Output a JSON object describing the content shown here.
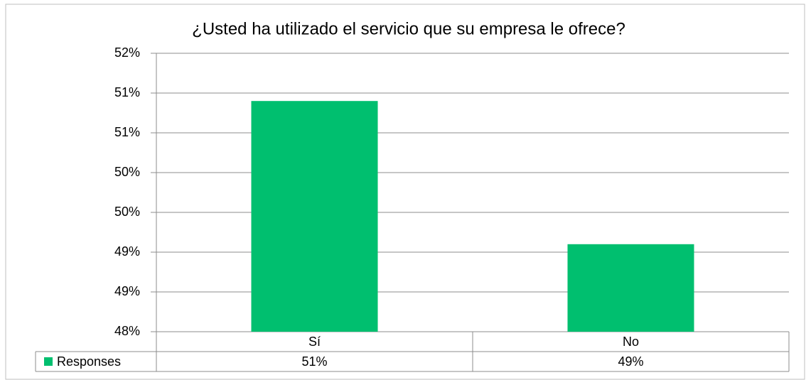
{
  "chart_data": {
    "type": "bar",
    "title": "¿Usted ha utilizado el servicio que su empresa le ofrece?",
    "categories": [
      "Sí",
      "No"
    ],
    "series": [
      {
        "name": "Responses",
        "color": "#00bf6f",
        "values": [
          50.9,
          49.1
        ],
        "value_labels": [
          "51%",
          "49%"
        ]
      }
    ],
    "ylim": [
      48,
      51.5
    ],
    "yticks": [
      {
        "value": 48,
        "label": "48%"
      },
      {
        "value": 48.5,
        "label": "49%"
      },
      {
        "value": 49,
        "label": "49%"
      },
      {
        "value": 49.5,
        "label": "50%"
      },
      {
        "value": 50,
        "label": "50%"
      },
      {
        "value": 50.5,
        "label": "51%"
      },
      {
        "value": 51,
        "label": "51%"
      },
      {
        "value": 51.5,
        "label": "52%"
      }
    ],
    "grid": true
  }
}
